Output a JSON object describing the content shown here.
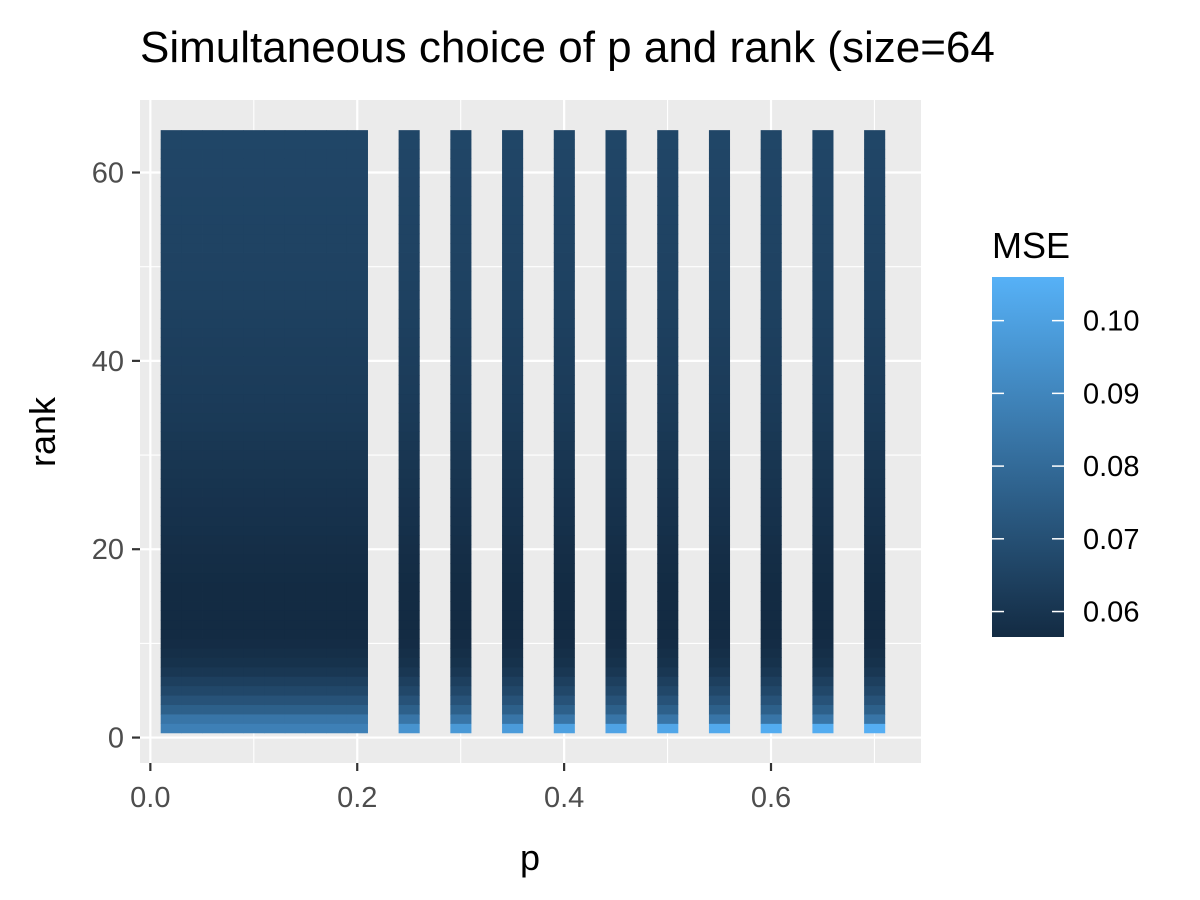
{
  "chart_data": {
    "type": "heatmap",
    "title": "Simultaneous choice of p and rank (size=64",
    "xlabel": "p",
    "ylabel": "rank",
    "xlim": [
      -0.01,
      0.745
    ],
    "ylim": [
      -2.7,
      67.7
    ],
    "x_ticks": [
      0.0,
      0.2,
      0.4,
      0.6
    ],
    "x_tick_labels": [
      "0.0",
      "0.2",
      "0.4",
      "0.6"
    ],
    "y_ticks": [
      0,
      20,
      40,
      60
    ],
    "y_tick_labels": [
      "0",
      "20",
      "40",
      "60"
    ],
    "grid": true,
    "tile_width": 0.02,
    "x": [
      0.02,
      0.04,
      0.06,
      0.08,
      0.1,
      0.12,
      0.14,
      0.16,
      0.18,
      0.2,
      0.25,
      0.3,
      0.35,
      0.4,
      0.45,
      0.5,
      0.55,
      0.6,
      0.65,
      0.7
    ],
    "rank": [
      1,
      2,
      3,
      4,
      5,
      6,
      7,
      8,
      9,
      10,
      11,
      12,
      13,
      14,
      15,
      16,
      17,
      18,
      19,
      20,
      21,
      22,
      23,
      24,
      25,
      26,
      27,
      28,
      29,
      30,
      31,
      32,
      33,
      34,
      35,
      36,
      37,
      38,
      39,
      40,
      41,
      42,
      43,
      44,
      45,
      46,
      47,
      48,
      49,
      50,
      51,
      52,
      53,
      54,
      55,
      56,
      57,
      58,
      59,
      60,
      61,
      62,
      63,
      64
    ],
    "mse_rank1": [
      0.088,
      0.088,
      0.088,
      0.088,
      0.088,
      0.088,
      0.088,
      0.088,
      0.088,
      0.088,
      0.095,
      0.097,
      0.098,
      0.1,
      0.101,
      0.102,
      0.103,
      0.104,
      0.104,
      0.105
    ],
    "mse_by_rank": [
      0.084,
      0.076,
      0.071,
      0.067,
      0.064,
      0.061,
      0.059,
      0.058,
      0.057,
      0.0565,
      0.056,
      0.056,
      0.056,
      0.0562,
      0.0565,
      0.0568,
      0.0571,
      0.0574,
      0.0577,
      0.058,
      0.0583,
      0.0586,
      0.0589,
      0.0592,
      0.0595,
      0.0598,
      0.0601,
      0.0604,
      0.0607,
      0.061,
      0.0613,
      0.0616,
      0.0619,
      0.0622,
      0.0625,
      0.0627,
      0.0629,
      0.0631,
      0.0633,
      0.0635,
      0.0637,
      0.0639,
      0.0641,
      0.0643,
      0.0645,
      0.0647,
      0.0648,
      0.0649,
      0.065,
      0.0651,
      0.0652,
      0.0653,
      0.0654,
      0.0655,
      0.0656,
      0.0657,
      0.0658,
      0.0659,
      0.066,
      0.0661,
      0.0662,
      0.0663,
      0.0664
    ],
    "legend": {
      "title": "MSE",
      "position": "right",
      "min": 0.0565,
      "max": 0.106,
      "breaks": [
        0.06,
        0.07,
        0.08,
        0.09,
        0.1
      ],
      "labels": [
        "0.06",
        "0.07",
        "0.08",
        "0.09",
        "0.10"
      ],
      "low_color": "#132B43",
      "high_color": "#56B1F7"
    }
  }
}
